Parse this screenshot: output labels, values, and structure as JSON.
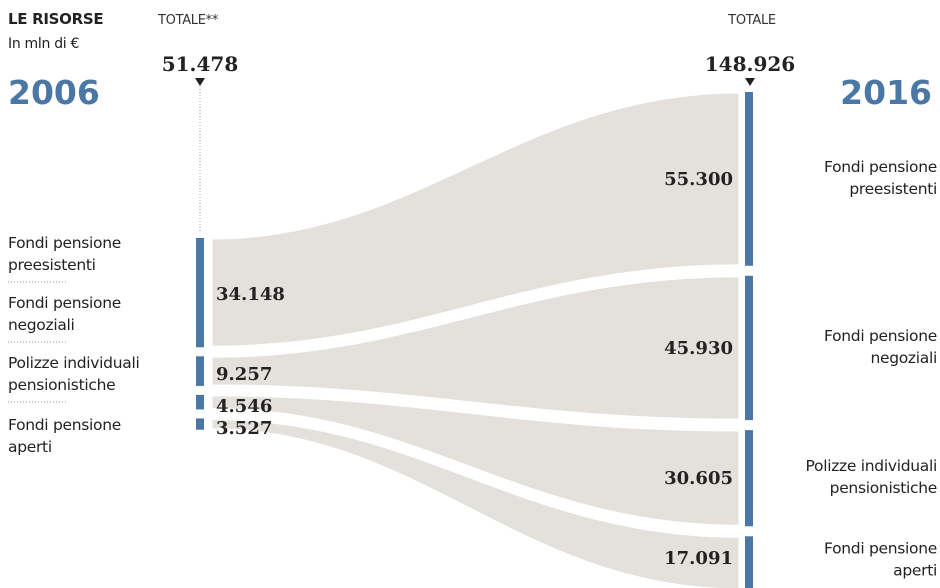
{
  "chart_data": {
    "type": "sankey",
    "title": "LE RISORSE",
    "subtitle": "In mln di €",
    "years": {
      "left": "2006",
      "right": "2016"
    },
    "totals": {
      "left_label": "TOTALE**",
      "left_value": "51.478",
      "right_label": "TOTALE",
      "right_value": "148.926"
    },
    "left_nodes": [
      {
        "label_lines": [
          "Fondi pensione",
          "preesistenti"
        ],
        "value_label": "",
        "value": null
      },
      {
        "label_lines": [
          "Fondi pensione",
          "negoziali"
        ],
        "value_label": "34.148",
        "value": 34.148
      },
      {
        "label_lines": [
          "Polizze individuali",
          "pensionistiche"
        ],
        "value_label": "9.257",
        "value": 9.257
      },
      {
        "label_lines": [],
        "value_label": "4.546",
        "value": 4.546
      },
      {
        "label_lines": [
          "Fondi pensione",
          "aperti"
        ],
        "value_label": "3.527",
        "value": 3.527
      }
    ],
    "right_nodes": [
      {
        "label_lines": [
          "Fondi pensione",
          "preesistenti"
        ],
        "value_label": "55.300",
        "value": 55.3
      },
      {
        "label_lines": [
          "Fondi pensione",
          "negoziali"
        ],
        "value_label": "45.930",
        "value": 45.93
      },
      {
        "label_lines": [
          "Polizze individuali",
          "pensionistiche"
        ],
        "value_label": "30.605",
        "value": 30.605
      },
      {
        "label_lines": [
          "Fondi pensione",
          "aperti"
        ],
        "value_label": "17.091",
        "value": 17.091
      }
    ],
    "colors": {
      "bar": "#4a77a6",
      "flow": "#e4e1dc",
      "year": "#4a77a6",
      "text": "#222222"
    }
  }
}
